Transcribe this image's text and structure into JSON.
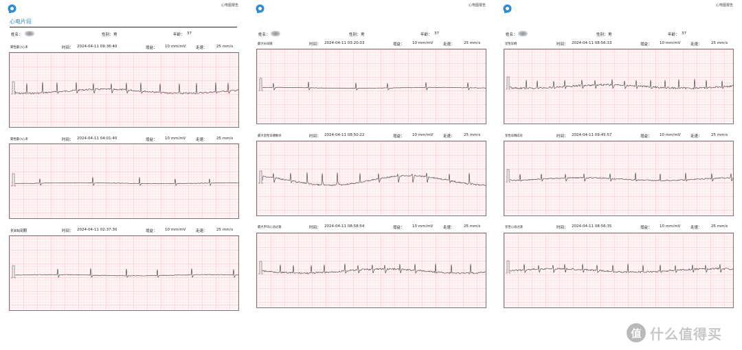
{
  "report_title": "心电图报告",
  "section_title": "心电片段",
  "patient": {
    "name_label": "姓名：",
    "gender_label": "性别：",
    "gender": "男",
    "age_label": "年龄：",
    "age": "37"
  },
  "field_labels": {
    "time": "时间：",
    "gain": "增益：",
    "speed": "走速："
  },
  "pages": [
    {
      "strips": [
        {
          "title": "窦性最小心率",
          "time": "2024-04-11 09:36:40",
          "gain": "10 mm/mV",
          "speed": "25 mm/s"
        },
        {
          "title": "窦性最小心率",
          "time": "2024-04-11 04:01:40",
          "gain": "10 mm/mV",
          "speed": "25 mm/s"
        },
        {
          "title": "长RR间期",
          "time": "2024-04-11 02:37:30",
          "gain": "10 mm/mV",
          "speed": "25 mm/s"
        }
      ]
    },
    {
      "strips": [
        {
          "title": "最大长间隔",
          "time": "2024-04-11 03:20:03",
          "gain": "10 mm/mV",
          "speed": "25 mm/s"
        },
        {
          "title": "最大室性早搏数目",
          "time": "2024-04-11 08:50:22",
          "gain": "10 mm/mV",
          "speed": "25 mm/s"
        },
        {
          "title": "最大平均心动过速",
          "time": "2024-04-11 08:58:54",
          "gain": "10 mm/mV",
          "speed": "25 mm/s"
        }
      ]
    },
    {
      "strips": [
        {
          "title": "室性早搏",
          "time": "2024-04-11 08:56:33",
          "gain": "10 mm/mV",
          "speed": "25 mm/s"
        },
        {
          "title": "室性早搏成对",
          "time": "2024-04-11 09:45:57",
          "gain": "10 mm/mV",
          "speed": "25 mm/s"
        },
        {
          "title": "室性心动过速",
          "time": "2024-04-11 08:56:35",
          "gain": "10 mm/mV",
          "speed": "25 mm/s"
        }
      ]
    }
  ],
  "watermark": {
    "badge": "值",
    "text": "什么值得买"
  },
  "colors": {
    "accent": "#2f8ccf",
    "grid_major": "#f3bcc5",
    "grid_minor": "#fbe1e5",
    "trace": "#333333"
  },
  "icons": [
    "app-logo-icon",
    "blurred-name-icon",
    "watermark-badge-icon"
  ]
}
